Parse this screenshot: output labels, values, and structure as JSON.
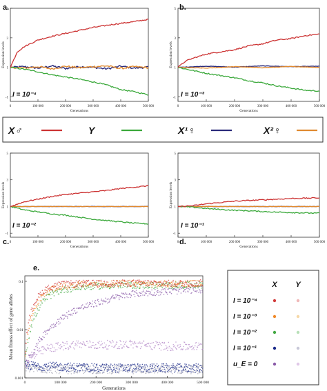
{
  "figure": {
    "legend": {
      "items": [
        {
          "label": "X♂",
          "color": "#cc3333"
        },
        {
          "label": "Y",
          "color": "#3aa83a"
        },
        {
          "label": "X¹♀",
          "color": "#2a2a7a"
        },
        {
          "label": "X²♀",
          "color": "#e08a30"
        }
      ]
    },
    "panel_e_legend": {
      "col_x": "X",
      "col_y": "Y",
      "rows": [
        {
          "label": "I = 10⁻⁴",
          "x_color": "#d23a3a",
          "y_color": "#f0b8b8"
        },
        {
          "label": "I = 10⁻³",
          "x_color": "#f08a2a",
          "y_color": "#f6d8a8"
        },
        {
          "label": "I = 10⁻²",
          "x_color": "#42a842",
          "y_color": "#b8e0b8"
        },
        {
          "label": "I = 10⁻¹",
          "x_color": "#1a2a8a",
          "y_color": "#c8c8d8"
        },
        {
          "label": "u_E = 0",
          "x_color": "#8a5aa8",
          "y_color": "#e0c8e8"
        }
      ]
    }
  },
  "chart_data": [
    {
      "type": "line",
      "panel": "a.",
      "annotation": "I = 10⁻⁴",
      "xlabel": "Generations",
      "ylabel": "Expression levels",
      "xlim": [
        0,
        500000
      ],
      "ylim": [
        -1.3,
        5
      ],
      "xticks": [
        0,
        100000,
        200000,
        300000,
        400000,
        500000
      ],
      "xtick_labels": [
        "0",
        "100 000",
        "200 000",
        "300 000",
        "400 000",
        "500 000"
      ],
      "yticks": [
        -1,
        1,
        3,
        5
      ],
      "ytick_labels": [
        "-1",
        "1",
        "3",
        "5"
      ],
      "series": [
        {
          "color": "#cc3333",
          "x": [
            0,
            25000,
            50000,
            100000,
            150000,
            200000,
            250000,
            300000,
            350000,
            400000,
            450000,
            500000
          ],
          "y": [
            1,
            2.05,
            2.4,
            2.85,
            3.1,
            3.3,
            3.5,
            3.7,
            3.85,
            3.98,
            4.1,
            4.25
          ]
        },
        {
          "color": "#3aa83a",
          "x": [
            0,
            50000,
            100000,
            150000,
            200000,
            250000,
            300000,
            350000,
            400000,
            450000,
            500000
          ],
          "y": [
            1,
            0.88,
            0.7,
            0.5,
            0.35,
            0.2,
            0.02,
            -0.2,
            -0.5,
            -0.65,
            -0.85
          ]
        },
        {
          "color": "#2a2a7a",
          "x": [
            0,
            50000,
            100000,
            150000,
            200000,
            250000,
            300000,
            350000,
            400000,
            450000,
            500000
          ],
          "y": [
            1,
            1.05,
            0.95,
            1.1,
            0.92,
            1.05,
            1.0,
            0.9,
            1.08,
            0.95,
            1.02
          ]
        },
        {
          "color": "#e08a30",
          "x": [
            0,
            50000,
            100000,
            150000,
            200000,
            250000,
            300000,
            350000,
            400000,
            450000,
            500000
          ],
          "y": [
            1,
            0.95,
            1.05,
            0.9,
            1.08,
            0.97,
            1.05,
            1.1,
            0.93,
            1.05,
            0.98
          ]
        }
      ]
    },
    {
      "type": "line",
      "panel": "b.",
      "annotation": "I = 10⁻³",
      "xlabel": "Generations",
      "ylabel": "Expression levels",
      "xlim": [
        0,
        500000
      ],
      "ylim": [
        -1.3,
        5
      ],
      "xticks": [
        0,
        100000,
        200000,
        300000,
        400000,
        500000
      ],
      "xtick_labels": [
        "0",
        "100 000",
        "200 000",
        "300 000",
        "400 000",
        "500 000"
      ],
      "yticks": [
        -1,
        1,
        3,
        5
      ],
      "ytick_labels": [
        "-1",
        "1",
        "3",
        "5"
      ],
      "series": [
        {
          "color": "#cc3333",
          "x": [
            0,
            25000,
            50000,
            100000,
            150000,
            200000,
            250000,
            300000,
            350000,
            400000,
            450000,
            500000
          ],
          "y": [
            1,
            1.4,
            1.6,
            1.9,
            2.05,
            2.2,
            2.45,
            2.6,
            2.85,
            2.95,
            3.15,
            3.25
          ]
        },
        {
          "color": "#3aa83a",
          "x": [
            0,
            50000,
            100000,
            150000,
            200000,
            250000,
            300000,
            350000,
            400000,
            450000,
            500000
          ],
          "y": [
            1,
            0.8,
            0.6,
            0.45,
            0.3,
            0.1,
            -0.05,
            -0.25,
            -0.4,
            -0.55,
            -0.6
          ]
        },
        {
          "color": "#2a2a7a",
          "x": [
            0,
            100000,
            200000,
            300000,
            400000,
            500000
          ],
          "y": [
            1,
            1.08,
            1.02,
            1.1,
            1.05,
            1.08
          ]
        },
        {
          "color": "#e08a30",
          "x": [
            0,
            100000,
            200000,
            300000,
            400000,
            500000
          ],
          "y": [
            1,
            0.95,
            1.05,
            0.98,
            1.06,
            1.0
          ]
        }
      ]
    },
    {
      "type": "line",
      "panel": "c.",
      "annotation": "I = 10⁻²",
      "xlabel": "Generations",
      "ylabel": "Expression levels",
      "xlim": [
        0,
        500000
      ],
      "ylim": [
        -1.3,
        5
      ],
      "xticks": [
        0,
        100000,
        200000,
        300000,
        400000,
        500000
      ],
      "xtick_labels": [
        "0",
        "100 000",
        "200 000",
        "300 000",
        "400 000",
        "500 000"
      ],
      "yticks": [
        -1,
        1,
        3,
        5
      ],
      "ytick_labels": [
        "-1",
        "1",
        "3",
        "5"
      ],
      "series": [
        {
          "color": "#cc3333",
          "x": [
            0,
            50000,
            100000,
            150000,
            200000,
            250000,
            300000,
            350000,
            400000,
            450000,
            500000
          ],
          "y": [
            1,
            1.35,
            1.55,
            1.75,
            1.9,
            2.0,
            2.1,
            2.2,
            2.35,
            2.45,
            2.55
          ]
        },
        {
          "color": "#3aa83a",
          "x": [
            0,
            50000,
            100000,
            150000,
            200000,
            250000,
            300000,
            350000,
            400000,
            450000,
            500000
          ],
          "y": [
            1,
            0.75,
            0.6,
            0.45,
            0.35,
            0.2,
            0.05,
            -0.05,
            -0.15,
            -0.25,
            -0.3
          ]
        },
        {
          "color": "#2a2a7a",
          "x": [
            0,
            500000
          ],
          "y": [
            1,
            1
          ]
        },
        {
          "color": "#e08a30",
          "x": [
            0,
            500000
          ],
          "y": [
            1,
            1
          ]
        }
      ]
    },
    {
      "type": "line",
      "panel": "d.",
      "annotation": "I = 10⁻¹",
      "xlabel": "Generations",
      "ylabel": "Expression levels",
      "xlim": [
        0,
        500000
      ],
      "ylim": [
        -1.3,
        5
      ],
      "xticks": [
        0,
        100000,
        200000,
        300000,
        400000,
        500000
      ],
      "xtick_labels": [
        "0",
        "100 000",
        "200 000",
        "300 000",
        "400 000",
        "500 000"
      ],
      "yticks": [
        -1,
        1,
        3,
        5
      ],
      "ytick_labels": [
        "-1",
        "1",
        "3",
        "5"
      ],
      "series": [
        {
          "color": "#cc3333",
          "x": [
            0,
            50000,
            100000,
            150000,
            200000,
            250000,
            300000,
            350000,
            400000,
            450000,
            500000
          ],
          "y": [
            1,
            1.05,
            1.2,
            1.3,
            1.4,
            1.45,
            1.5,
            1.55,
            1.6,
            1.62,
            1.65
          ]
        },
        {
          "color": "#3aa83a",
          "x": [
            0,
            50000,
            100000,
            150000,
            200000,
            250000,
            300000,
            350000,
            400000,
            450000,
            500000
          ],
          "y": [
            1,
            0.95,
            0.85,
            0.78,
            0.72,
            0.68,
            0.62,
            0.58,
            0.55,
            0.52,
            0.5
          ]
        },
        {
          "color": "#2a2a7a",
          "x": [
            0,
            500000
          ],
          "y": [
            1,
            1
          ]
        },
        {
          "color": "#e08a30",
          "x": [
            0,
            500000
          ],
          "y": [
            1,
            1
          ]
        }
      ]
    },
    {
      "type": "scatter",
      "panel": "e.",
      "xlabel": "Generations",
      "ylabel": "Mean fitness effect of gene alleles",
      "xlim": [
        0,
        500000
      ],
      "ylim": [
        0.001,
        0.13
      ],
      "yscale": "log",
      "xticks": [
        0,
        100000,
        200000,
        300000,
        400000,
        500000
      ],
      "xtick_labels": [
        "0",
        "100 000",
        "200 000",
        "300 000",
        "400 000",
        "500 000"
      ],
      "yticks": [
        0.001,
        0.01,
        0.1
      ],
      "ytick_labels": [
        "0.001",
        "0.01",
        "0.1"
      ],
      "series": [
        {
          "color": "#d23a3a",
          "x": [
            0,
            10000,
            30000,
            60000,
            100000,
            150000,
            200000,
            300000,
            400000,
            500000
          ],
          "y": [
            0.0025,
            0.012,
            0.04,
            0.07,
            0.085,
            0.09,
            0.09,
            0.092,
            0.09,
            0.092
          ]
        },
        {
          "color": "#f08a2a",
          "x": [
            0,
            10000,
            30000,
            60000,
            100000,
            150000,
            200000,
            300000,
            400000,
            500000
          ],
          "y": [
            0.0022,
            0.009,
            0.03,
            0.06,
            0.078,
            0.085,
            0.088,
            0.09,
            0.088,
            0.09
          ]
        },
        {
          "color": "#42a842",
          "x": [
            0,
            10000,
            30000,
            60000,
            100000,
            150000,
            200000,
            300000,
            400000,
            500000
          ],
          "y": [
            0.002,
            0.006,
            0.02,
            0.045,
            0.065,
            0.075,
            0.08,
            0.083,
            0.082,
            0.085
          ]
        },
        {
          "color": "#8a5aa8",
          "x": [
            0,
            30000,
            60000,
            100000,
            150000,
            200000,
            250000,
            300000,
            400000,
            500000
          ],
          "y": [
            0.002,
            0.004,
            0.009,
            0.016,
            0.027,
            0.035,
            0.045,
            0.055,
            0.062,
            0.068
          ]
        },
        {
          "color": "#b48ac8",
          "x": [
            0,
            30000,
            60000,
            100000,
            150000,
            200000,
            300000,
            400000,
            500000
          ],
          "y": [
            0.0018,
            0.003,
            0.004,
            0.0045,
            0.005,
            0.0048,
            0.005,
            0.0045,
            0.0045
          ]
        },
        {
          "color": "#1a2a8a",
          "x": [
            0,
            100000,
            200000,
            300000,
            400000,
            500000
          ],
          "y": [
            0.0018,
            0.0017,
            0.0016,
            0.0016,
            0.0016,
            0.0016
          ]
        },
        {
          "color": "#a5a5b5",
          "x": [
            0,
            100000,
            200000,
            300000,
            400000,
            500000
          ],
          "y": [
            0.0016,
            0.0015,
            0.0015,
            0.0015,
            0.0015,
            0.0015
          ]
        }
      ]
    }
  ]
}
